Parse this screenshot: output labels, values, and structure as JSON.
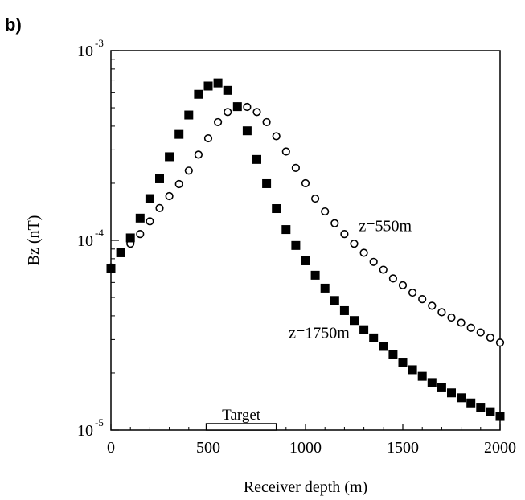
{
  "panel_label": "b)",
  "chart_data": {
    "type": "scatter",
    "title": "",
    "xlabel": "Receiver depth (m)",
    "ylabel": "Bz (nT)",
    "xlim": [
      0,
      2000
    ],
    "ylim": [
      1e-05,
      0.001
    ],
    "yscale": "log",
    "grid": false,
    "x_ticks": [
      {
        "value": 0,
        "label": "0"
      },
      {
        "value": 500,
        "label": "500"
      },
      {
        "value": 1000,
        "label": "1000"
      },
      {
        "value": 1500,
        "label": "1500"
      },
      {
        "value": 2000,
        "label": "2000"
      }
    ],
    "y_ticks": [
      {
        "value": 1e-05,
        "base": "10",
        "exp": "-5"
      },
      {
        "value": 0.0001,
        "base": "10",
        "exp": "-4"
      },
      {
        "value": 0.001,
        "base": "10",
        "exp": "-3"
      }
    ],
    "annotation": {
      "label": "Target",
      "x_start": 490,
      "x_end": 850
    },
    "series": [
      {
        "name": "z=550m",
        "marker": "open-circle",
        "label_at": [
          1410,
          0.000112
        ],
        "x": [
          0,
          50,
          100,
          150,
          200,
          250,
          300,
          350,
          400,
          450,
          500,
          550,
          600,
          650,
          700,
          750,
          800,
          850,
          900,
          950,
          1000,
          1050,
          1100,
          1150,
          1200,
          1250,
          1300,
          1350,
          1400,
          1450,
          1500,
          1550,
          1600,
          1650,
          1700,
          1750,
          1800,
          1850,
          1900,
          1950,
          2000
        ],
        "y": [
          7.2e-05,
          8.6e-05,
          9.6e-05,
          0.000108,
          0.000126,
          0.000148,
          0.000171,
          0.000198,
          0.000233,
          0.000283,
          0.000345,
          0.00042,
          0.000475,
          0.000508,
          0.000505,
          0.000475,
          0.00042,
          0.000354,
          0.000294,
          0.000241,
          0.0002,
          0.000166,
          0.000142,
          0.000123,
          0.000108,
          9.6e-05,
          8.6e-05,
          7.7e-05,
          7e-05,
          6.3e-05,
          5.8e-05,
          5.3e-05,
          4.9e-05,
          4.52e-05,
          4.18e-05,
          3.92e-05,
          3.68e-05,
          3.46e-05,
          3.27e-05,
          3.07e-05,
          2.89e-05
        ]
      },
      {
        "name": "z=1750m",
        "marker": "filled-square",
        "label_at": [
          1070,
          3.05e-05
        ],
        "x": [
          0,
          50,
          100,
          150,
          200,
          250,
          300,
          350,
          400,
          450,
          500,
          550,
          600,
          650,
          700,
          750,
          800,
          850,
          900,
          950,
          1000,
          1050,
          1100,
          1150,
          1200,
          1250,
          1300,
          1350,
          1400,
          1450,
          1500,
          1550,
          1600,
          1650,
          1700,
          1750,
          1800,
          1850,
          1900,
          1950,
          2000
        ],
        "y": [
          7.1e-05,
          8.6e-05,
          0.000103,
          0.000131,
          0.000166,
          0.000211,
          0.000276,
          0.000362,
          0.000458,
          0.000589,
          0.000651,
          0.000676,
          0.000618,
          0.000507,
          0.000378,
          0.000267,
          0.000199,
          0.000147,
          0.000114,
          9.4e-05,
          7.8e-05,
          6.55e-05,
          5.6e-05,
          4.82e-05,
          4.26e-05,
          3.78e-05,
          3.38e-05,
          3.06e-05,
          2.76e-05,
          2.5e-05,
          2.28e-05,
          2.08e-05,
          1.92e-05,
          1.78e-05,
          1.67e-05,
          1.57e-05,
          1.48e-05,
          1.39e-05,
          1.32e-05,
          1.25e-05,
          1.18e-05
        ]
      }
    ]
  }
}
